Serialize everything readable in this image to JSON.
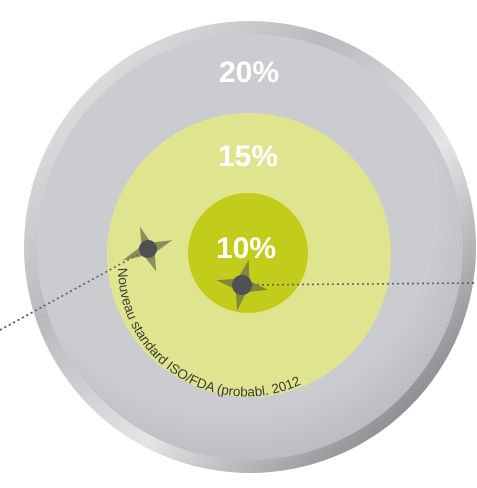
{
  "rings": [
    {
      "label": "20%",
      "color": "#c9cacc"
    },
    {
      "label": "15%",
      "color": "#dfe58f"
    },
    {
      "label": "10%",
      "color": "#c2cc1a"
    }
  ],
  "arc_label": "Nouveau standard ISO/FDA (probabl. 2012",
  "colors": {
    "bezel_light": "#e6e7e9",
    "bezel_dark": "#6e6f72",
    "marker": "#4f5053",
    "star": "#6b7248",
    "dotted_line": "#555555"
  }
}
